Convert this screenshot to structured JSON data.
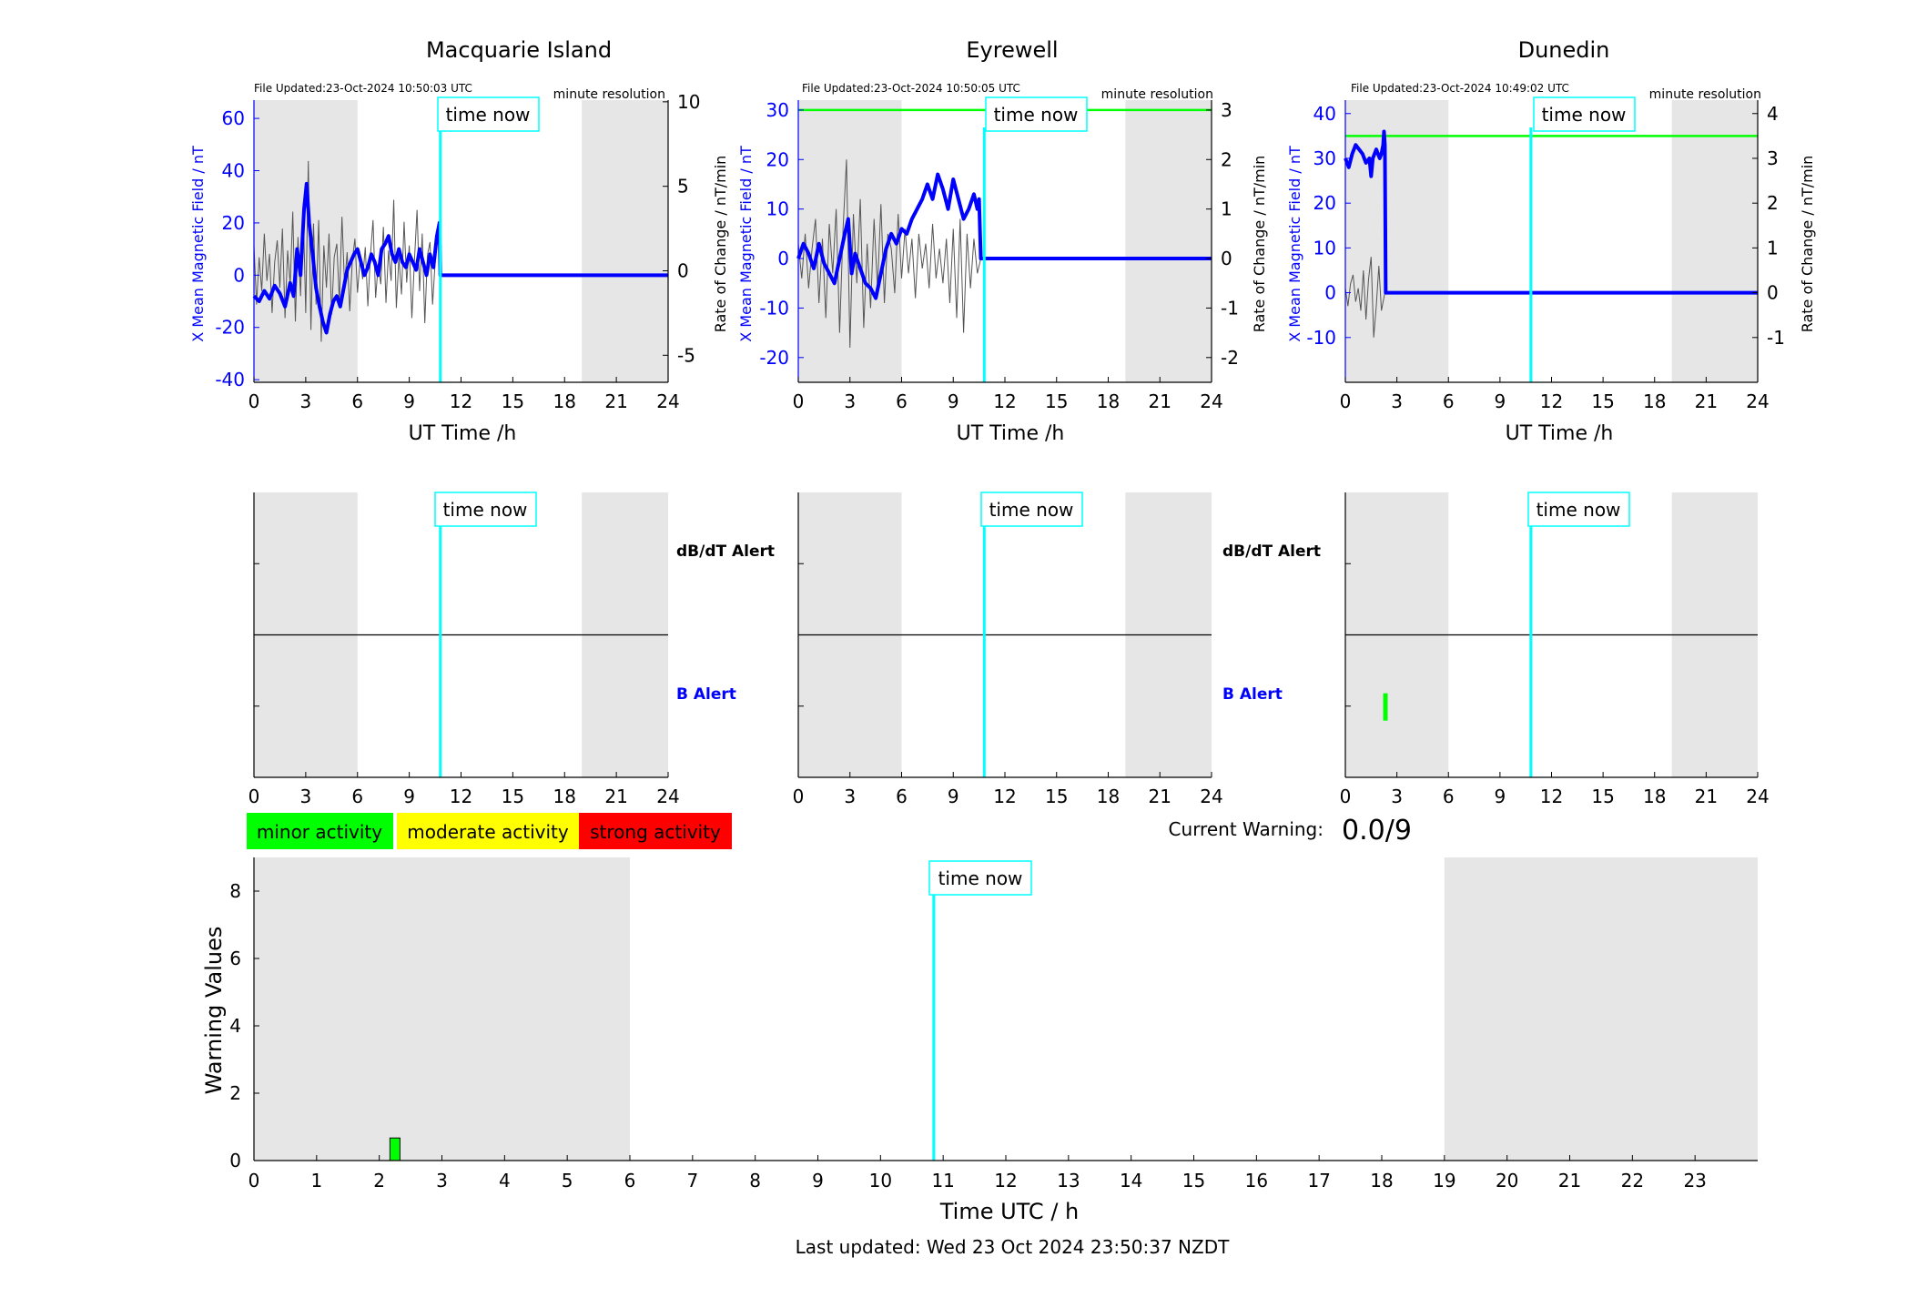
{
  "colors": {
    "shade": "#e6e6e6",
    "field": "#0000ff",
    "rate": "#000000",
    "time_now": "#00ffff",
    "threshold": "#00ff00",
    "minor": "#00ff00",
    "moderate": "#ffff00",
    "strong": "#ff0000"
  },
  "time_now_label": "time now",
  "stations": [
    {
      "title": "Macquarie Island",
      "file_updated": "File Updated:23-Oct-2024 10:50:03 UTC",
      "resolution": "minute resolution",
      "ylabel_left": "X Mean Magnetic Field / nT",
      "ylabel_right": "Rate of Change / nT/min",
      "xlabel": "UT Time /h"
    },
    {
      "title": "Eyrewell",
      "file_updated": "File Updated:23-Oct-2024 10:50:05 UTC",
      "resolution": "minute resolution",
      "ylabel_left": "X Mean Magnetic Field / nT",
      "ylabel_right": "Rate of Change / nT/min",
      "xlabel": "UT Time /h"
    },
    {
      "title": "Dunedin",
      "file_updated": "File Updated:23-Oct-2024 10:49:02 UTC",
      "resolution": "minute resolution",
      "ylabel_left": "X Mean Magnetic Field / nT",
      "ylabel_right": "Rate of Change / nT/min",
      "xlabel": "UT Time /h"
    }
  ],
  "alert_labels": {
    "dbdt": "dB/dT Alert",
    "b": "B Alert"
  },
  "legend": {
    "minor": "minor activity",
    "moderate": "moderate activity",
    "strong": "strong activity"
  },
  "current_warning_label": "Current Warning:",
  "current_warning_value": "0.0/9",
  "warning_chart": {
    "ylabel": "Warning Values",
    "xlabel": "Time UTC / h"
  },
  "last_updated": "Last updated: Wed 23 Oct 2024 23:50:37 NZDT",
  "chart_data": [
    {
      "type": "line",
      "title": "Macquarie Island",
      "xlabel": "UT Time /h",
      "ylabel": "X Mean Magnetic Field / nT",
      "ylabel_right": "Rate of Change / nT/min",
      "xlim": [
        0,
        24
      ],
      "xticks": [
        0,
        3,
        6,
        9,
        12,
        15,
        18,
        21,
        24
      ],
      "ylim": [
        -41,
        67
      ],
      "yticks": [
        -40,
        -20,
        0,
        20,
        40,
        60
      ],
      "ylim_right": [
        -6.6,
        10.1
      ],
      "yticks_right": [
        -5,
        0,
        5,
        10
      ],
      "shaded_hours": [
        [
          0,
          6
        ],
        [
          19,
          24
        ]
      ],
      "time_now": 10.8,
      "series": [
        {
          "axis": "left",
          "x": [
            0,
            0.3,
            0.6,
            0.9,
            1.2,
            1.5,
            1.8,
            2.1,
            2.3,
            2.5,
            2.7,
            2.9,
            3.05,
            3.2,
            3.4,
            3.6,
            3.8,
            4.0,
            4.2,
            4.4,
            4.6,
            4.8,
            5.0,
            5.2,
            5.4,
            5.6,
            5.8,
            6.0,
            6.2,
            6.4,
            6.6,
            6.8,
            7.0,
            7.2,
            7.4,
            7.6,
            7.8,
            8.0,
            8.2,
            8.4,
            8.6,
            8.8,
            9.0,
            9.2,
            9.4,
            9.6,
            9.8,
            10.0,
            10.2,
            10.4,
            10.6,
            10.75,
            10.8,
            24
          ],
          "y": [
            -8,
            -10,
            -6,
            -9,
            -4,
            -7,
            -12,
            -3,
            -8,
            10,
            0,
            25,
            35,
            20,
            8,
            -5,
            -12,
            -18,
            -22,
            -15,
            -10,
            -8,
            -12,
            -5,
            2,
            5,
            8,
            10,
            5,
            0,
            3,
            8,
            5,
            0,
            10,
            12,
            15,
            8,
            5,
            10,
            5,
            3,
            8,
            5,
            2,
            10,
            5,
            0,
            8,
            3,
            15,
            20,
            0,
            0
          ]
        },
        {
          "axis": "right",
          "x": [
            0,
            0.15,
            0.3,
            0.45,
            0.6,
            0.75,
            0.9,
            1.05,
            1.2,
            1.35,
            1.5,
            1.65,
            1.8,
            1.95,
            2.1,
            2.25,
            2.4,
            2.55,
            2.7,
            2.85,
            3.0,
            3.15,
            3.3,
            3.45,
            3.6,
            3.75,
            3.9,
            4.05,
            4.2,
            4.35,
            4.5,
            4.65,
            4.8,
            4.95,
            5.1,
            5.25,
            5.4,
            5.55,
            5.7,
            5.85,
            6.0,
            6.15,
            6.3,
            6.45,
            6.6,
            6.75,
            6.9,
            7.05,
            7.2,
            7.35,
            7.5,
            7.65,
            7.8,
            7.95,
            8.1,
            8.25,
            8.4,
            8.55,
            8.7,
            8.85,
            9.0,
            9.15,
            9.3,
            9.45,
            9.6,
            9.75,
            9.9,
            10.05,
            10.2,
            10.35,
            10.5,
            10.65,
            10.8
          ],
          "y": [
            1.5,
            -2.0,
            0.8,
            -1.2,
            2.2,
            -0.6,
            1.0,
            -2.5,
            0.5,
            1.8,
            -1.0,
            2.5,
            -2.8,
            1.2,
            -0.8,
            3.5,
            -3.0,
            2.0,
            -1.5,
            4.0,
            -2.5,
            6.5,
            -3.5,
            2.8,
            -2.0,
            3.0,
            -4.2,
            1.5,
            -1.0,
            2.2,
            -2.6,
            0.8,
            1.6,
            -1.8,
            3.2,
            -0.9,
            1.1,
            -2.4,
            0.6,
            1.9,
            -1.3,
            0.7,
            -0.5,
            1.4,
            -2.1,
            0.9,
            3.0,
            -1.6,
            0.4,
            -0.8,
            2.6,
            -1.9,
            1.2,
            -0.6,
            4.2,
            -2.2,
            0.8,
            -1.4,
            2.9,
            -0.7,
            1.5,
            -2.8,
            0.6,
            3.6,
            -1.2,
            2.2,
            -3.1,
            0.9,
            1.7,
            -2.0,
            0.5,
            2.4,
            0
          ]
        }
      ]
    },
    {
      "type": "line",
      "title": "Eyrewell",
      "xlabel": "UT Time /h",
      "ylabel": "X Mean Magnetic Field / nT",
      "ylabel_right": "Rate of Change / nT/min",
      "xlim": [
        0,
        24
      ],
      "xticks": [
        0,
        3,
        6,
        9,
        12,
        15,
        18,
        21,
        24
      ],
      "ylim": [
        -25,
        32
      ],
      "yticks": [
        -20,
        -10,
        0,
        10,
        20,
        30
      ],
      "ylim_right": [
        -2.5,
        3.2
      ],
      "yticks_right": [
        -2,
        -1,
        0,
        1,
        2,
        3
      ],
      "shaded_hours": [
        [
          0,
          6
        ],
        [
          19,
          24
        ]
      ],
      "time_now": 10.8,
      "threshold_right": 3,
      "series": [
        {
          "axis": "left",
          "x": [
            0,
            0.3,
            0.6,
            0.9,
            1.2,
            1.5,
            1.8,
            2.1,
            2.4,
            2.7,
            2.9,
            3.1,
            3.3,
            3.6,
            3.9,
            4.2,
            4.5,
            4.8,
            5.1,
            5.4,
            5.7,
            6.0,
            6.3,
            6.6,
            6.9,
            7.2,
            7.5,
            7.8,
            8.1,
            8.4,
            8.7,
            9.0,
            9.3,
            9.6,
            9.9,
            10.2,
            10.4,
            10.5,
            10.6,
            24
          ],
          "y": [
            0,
            3,
            1,
            -2,
            3,
            -1,
            -3,
            -5,
            0,
            5,
            8,
            -3,
            1,
            -2,
            -5,
            -6,
            -8,
            -3,
            2,
            5,
            3,
            6,
            5,
            8,
            10,
            12,
            15,
            12,
            17,
            14,
            10,
            16,
            12,
            8,
            10,
            13,
            10,
            12,
            0,
            0
          ]
        },
        {
          "axis": "right",
          "x": [
            0,
            0.2,
            0.4,
            0.6,
            0.8,
            1.0,
            1.2,
            1.4,
            1.6,
            1.8,
            2.0,
            2.2,
            2.4,
            2.6,
            2.8,
            3.0,
            3.2,
            3.4,
            3.6,
            3.8,
            4.0,
            4.2,
            4.4,
            4.6,
            4.8,
            5.0,
            5.2,
            5.4,
            5.6,
            5.8,
            6.0,
            6.2,
            6.4,
            6.6,
            6.8,
            7.0,
            7.2,
            7.4,
            7.6,
            7.8,
            8.0,
            8.2,
            8.4,
            8.6,
            8.8,
            9.0,
            9.2,
            9.4,
            9.6,
            9.8,
            10.0,
            10.2,
            10.4,
            10.6
          ],
          "y": [
            0.3,
            -0.4,
            0.5,
            -0.6,
            0.2,
            0.8,
            -0.9,
            0.4,
            -1.2,
            0.7,
            -0.3,
            1.0,
            -1.5,
            0.6,
            2.0,
            -1.8,
            0.9,
            -0.5,
            1.2,
            -1.4,
            0.3,
            -1.0,
            0.8,
            -0.6,
            1.1,
            -0.9,
            0.5,
            0.2,
            -0.7,
            0.9,
            -0.4,
            0.6,
            -0.3,
            0.4,
            -0.8,
            0.5,
            -0.2,
            0.3,
            -0.6,
            0.7,
            -0.4,
            0.2,
            -0.5,
            0.4,
            -0.9,
            0.6,
            -1.2,
            0.8,
            -1.5,
            0.5,
            -0.6,
            0.4,
            -0.3,
            0
          ]
        }
      ]
    },
    {
      "type": "line",
      "title": "Dunedin",
      "xlabel": "UT Time /h",
      "ylabel": "X Mean Magnetic Field / nT",
      "ylabel_right": "Rate of Change / nT/min",
      "xlim": [
        0,
        24
      ],
      "xticks": [
        0,
        3,
        6,
        9,
        12,
        15,
        18,
        21,
        24
      ],
      "ylim": [
        -20,
        43
      ],
      "yticks": [
        -10,
        0,
        10,
        20,
        30,
        40
      ],
      "ylim_right": [
        -2,
        4.3
      ],
      "yticks_right": [
        -1,
        0,
        1,
        2,
        3,
        4
      ],
      "shaded_hours": [
        [
          0,
          6
        ],
        [
          19,
          24
        ]
      ],
      "time_now": 10.8,
      "threshold_right": 3.5,
      "series": [
        {
          "axis": "left",
          "x": [
            0,
            0.2,
            0.4,
            0.6,
            0.8,
            1.0,
            1.2,
            1.4,
            1.5,
            1.6,
            1.8,
            2.0,
            2.1,
            2.2,
            2.25,
            2.3,
            2.35,
            24
          ],
          "y": [
            30,
            28,
            31,
            33,
            32,
            31,
            29,
            30,
            26,
            30,
            32,
            30,
            31,
            33,
            36,
            33,
            0,
            0
          ]
        },
        {
          "axis": "right",
          "x": [
            0,
            0.15,
            0.3,
            0.45,
            0.6,
            0.75,
            0.9,
            1.05,
            1.2,
            1.35,
            1.5,
            1.65,
            1.8,
            1.95,
            2.1,
            2.3
          ],
          "y": [
            0.1,
            -0.3,
            0.2,
            0.4,
            -0.2,
            0.1,
            -0.4,
            0.5,
            -0.6,
            0.3,
            0.8,
            -1.0,
            -0.3,
            0.6,
            -0.4,
            0
          ]
        }
      ]
    },
    {
      "type": "bar",
      "ylabel": "Warning Values",
      "xlabel": "Time UTC / h",
      "xlim": [
        0,
        24
      ],
      "xticks": [
        0,
        1,
        2,
        3,
        4,
        5,
        6,
        7,
        8,
        9,
        10,
        11,
        12,
        13,
        14,
        15,
        16,
        17,
        18,
        19,
        20,
        21,
        22,
        23
      ],
      "ylim": [
        0,
        9
      ],
      "yticks": [
        0,
        2,
        4,
        6,
        8
      ],
      "shaded_hours": [
        [
          0,
          6
        ],
        [
          19,
          24
        ]
      ],
      "time_now": 10.85,
      "bars": [
        {
          "start": 2.17,
          "end": 2.33,
          "value": 0.67,
          "level": "minor"
        }
      ]
    }
  ],
  "alert_data": [
    {
      "shaded_hours": [
        [
          0,
          6
        ],
        [
          19,
          24
        ]
      ],
      "time_now": 10.8,
      "xticks": [
        0,
        3,
        6,
        9,
        12,
        15,
        18,
        21,
        24
      ],
      "b_alerts": []
    },
    {
      "shaded_hours": [
        [
          0,
          6
        ],
        [
          19,
          24
        ]
      ],
      "time_now": 10.8,
      "xticks": [
        0,
        3,
        6,
        9,
        12,
        15,
        18,
        21,
        24
      ],
      "b_alerts": []
    },
    {
      "shaded_hours": [
        [
          0,
          6
        ],
        [
          19,
          24
        ]
      ],
      "time_now": 10.8,
      "xticks": [
        0,
        3,
        6,
        9,
        12,
        15,
        18,
        21,
        24
      ],
      "b_alerts": [
        {
          "start": 2.2,
          "end": 2.4,
          "level": "minor"
        }
      ]
    }
  ]
}
